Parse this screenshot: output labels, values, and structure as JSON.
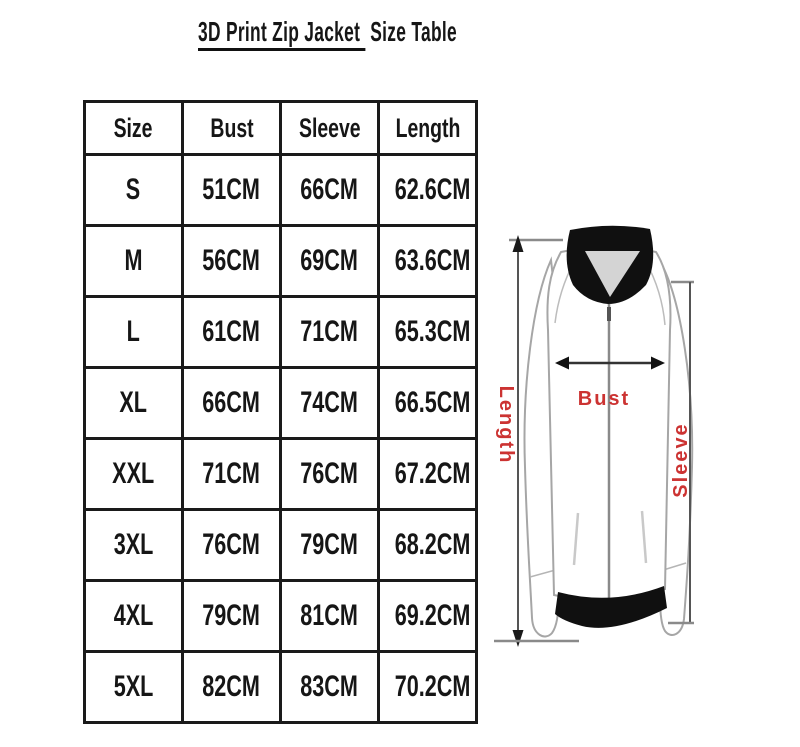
{
  "title": {
    "underlined": "3D Print Zip Jacket",
    "rest": " Size Table"
  },
  "chart_data": {
    "type": "table",
    "title": "3D Print Zip Jacket Size Table",
    "columns": [
      "Size",
      "Bust",
      "Sleeve",
      "Length"
    ],
    "rows": [
      [
        "S",
        "51CM",
        "66CM",
        "62.6CM"
      ],
      [
        "M",
        "56CM",
        "69CM",
        "63.6CM"
      ],
      [
        "L",
        "61CM",
        "71CM",
        "65.3CM"
      ],
      [
        "XL",
        "66CM",
        "74CM",
        "66.5CM"
      ],
      [
        "XXL",
        "71CM",
        "76CM",
        "67.2CM"
      ],
      [
        "3XL",
        "76CM",
        "79CM",
        "68.2CM"
      ],
      [
        "4XL",
        "79CM",
        "81CM",
        "69.2CM"
      ],
      [
        "5XL",
        "82CM",
        "83CM",
        "70.2CM"
      ]
    ],
    "unit": "CM"
  },
  "diagram": {
    "labels": {
      "length": "Length",
      "bust": "Bust",
      "sleeve": "Sleeve"
    },
    "label_color": "#cc3332",
    "garment_colors": {
      "trim": "#101010",
      "inner_panel": "#d4d4d4",
      "outline": "#a6a6a6"
    }
  },
  "colors": {
    "background": "#ffffff",
    "table_border": "#1a1a1a",
    "text": "#161616"
  }
}
